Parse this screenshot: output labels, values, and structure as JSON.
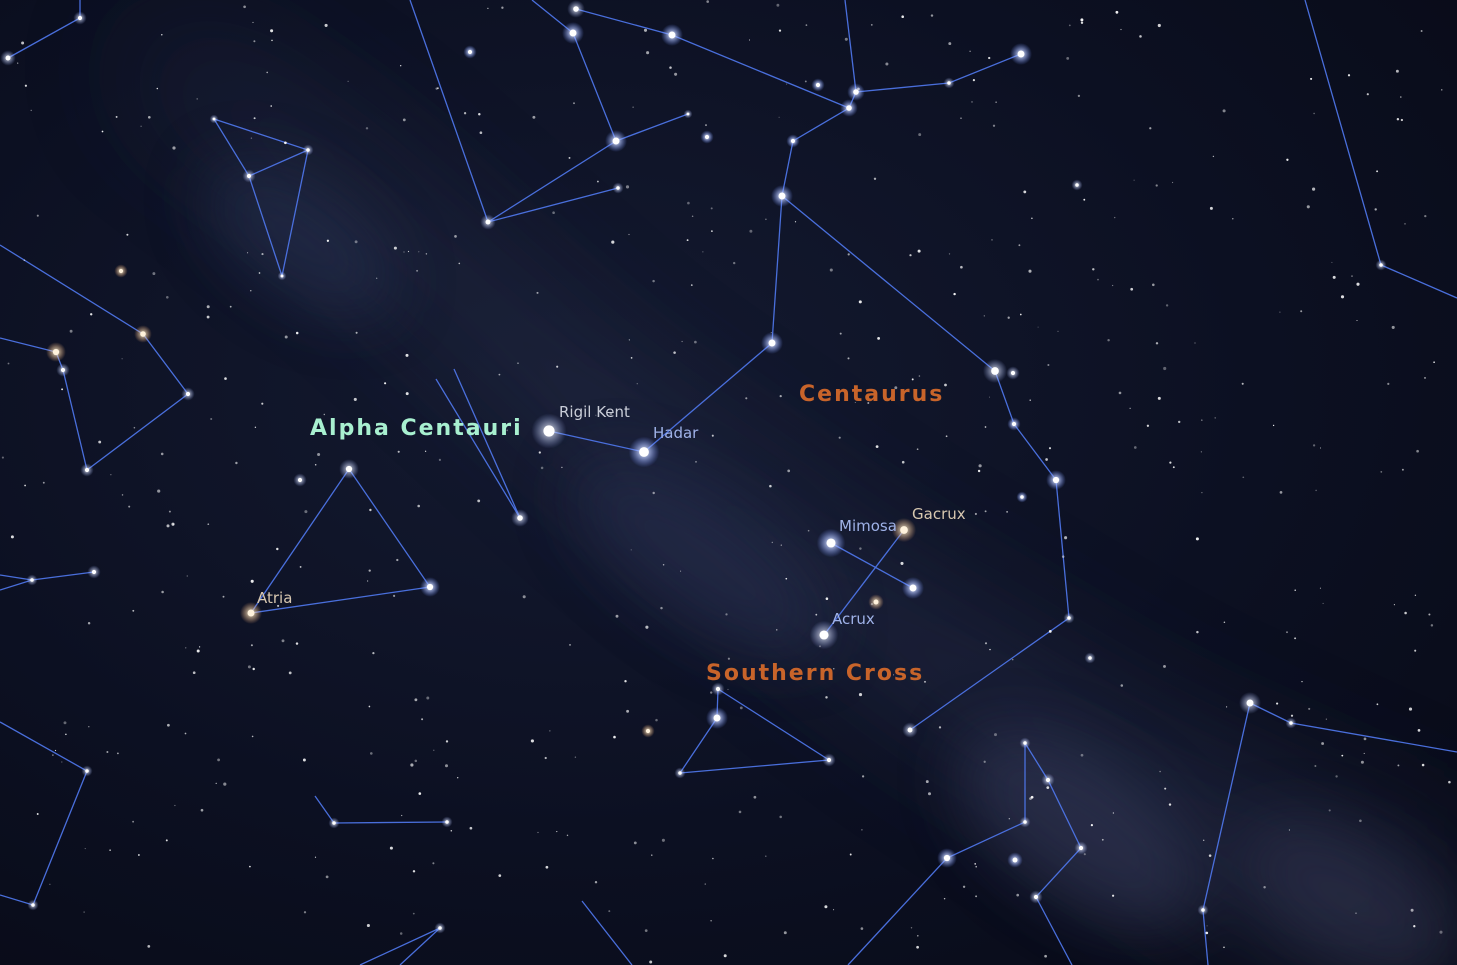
{
  "image": {
    "subject": "Night sky star chart",
    "colors": {
      "sky": "#0c1022",
      "constellation_line": "#4d74e6",
      "constellation_label": "#c8642a",
      "star_label": "#c9cdd8",
      "blue_star_label": "#9fb2e8",
      "asterism_label": "#a8f0d0"
    }
  },
  "constellation_labels": {
    "centaurus": "Centaurus",
    "southern_cross": "Southern Cross"
  },
  "highlight_label": "Alpha Centauri",
  "star_labels": {
    "rigil_kent": "Rigil Kent",
    "hadar": "Hadar",
    "gacrux": "Gacrux",
    "mimosa": "Mimosa",
    "acrux": "Acrux",
    "atria": "Atria"
  }
}
